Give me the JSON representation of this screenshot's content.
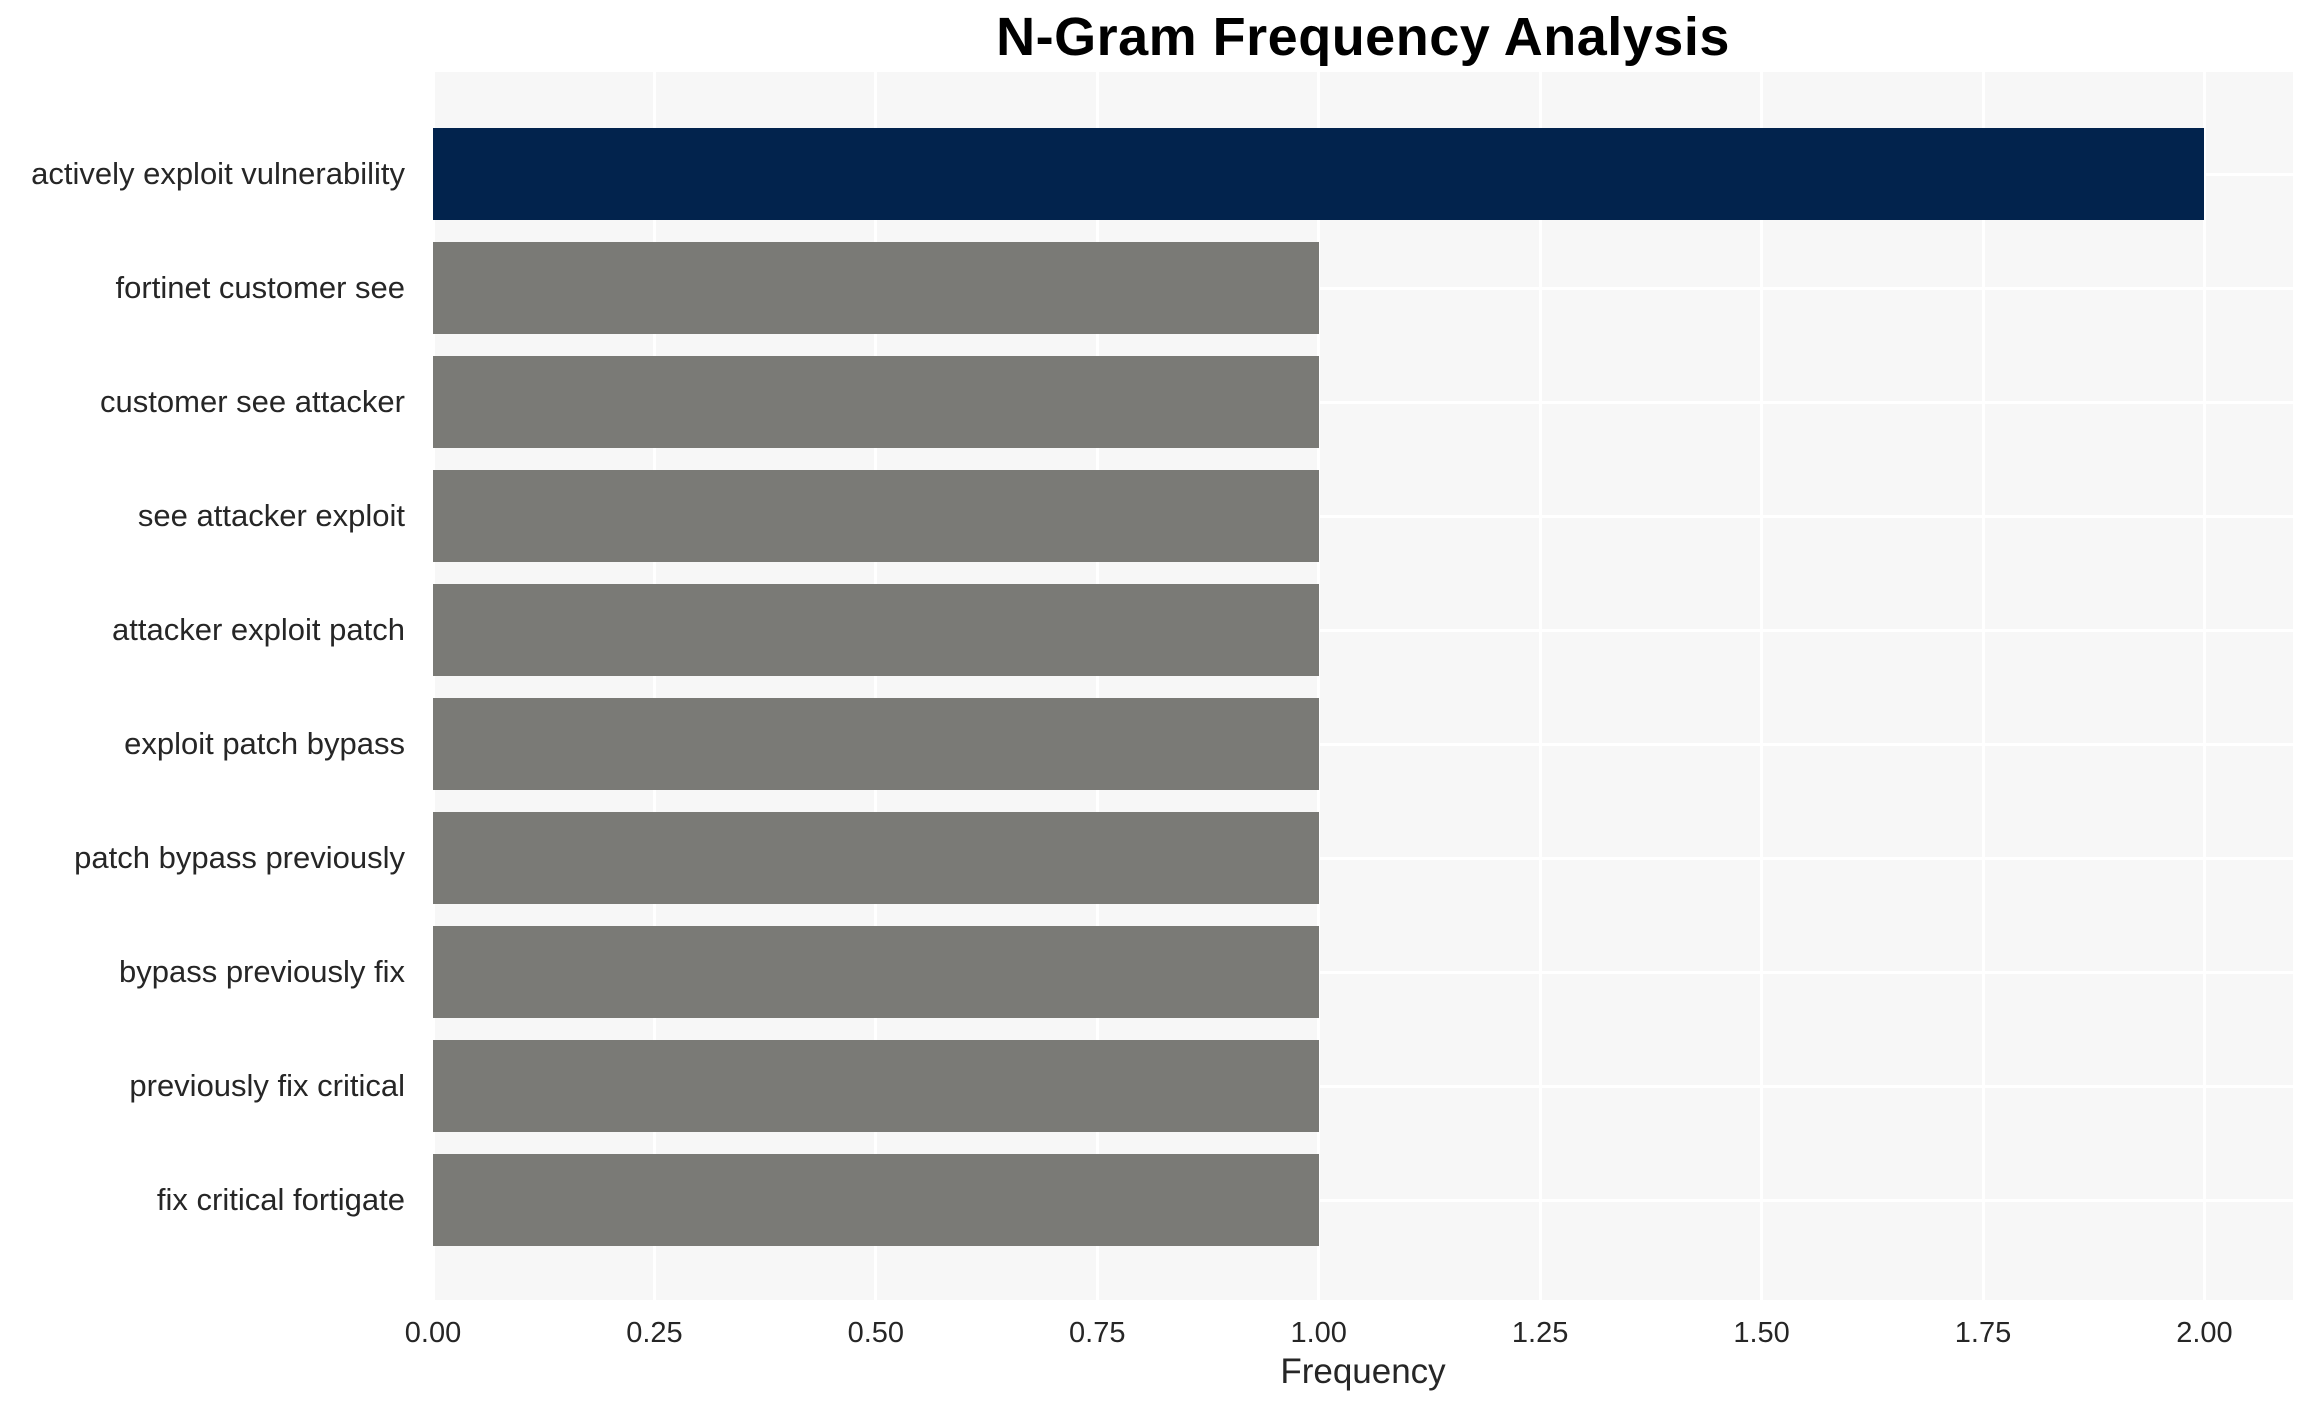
{
  "chart_data": {
    "type": "bar",
    "orientation": "horizontal",
    "title": "N-Gram Frequency Analysis",
    "xlabel": "Frequency",
    "ylabel": "",
    "categories": [
      "actively exploit vulnerability",
      "fortinet customer see",
      "customer see attacker",
      "see attacker exploit",
      "attacker exploit patch",
      "exploit patch bypass",
      "patch bypass previously",
      "bypass previously fix",
      "previously fix critical",
      "fix critical fortigate"
    ],
    "values": [
      2,
      1,
      1,
      1,
      1,
      1,
      1,
      1,
      1,
      1
    ],
    "xlim": [
      0,
      2.1
    ],
    "xticks": [
      0,
      0.25,
      0.5,
      0.75,
      1,
      1.25,
      1.5,
      1.75,
      2
    ],
    "xtick_labels": [
      "0.00",
      "0.25",
      "0.50",
      "0.75",
      "1.00",
      "1.25",
      "1.50",
      "1.75",
      "2.00"
    ],
    "grid": true,
    "legend": false,
    "colors": {
      "bar_colors": [
        "#02234d",
        "#7a7a76",
        "#7a7a76",
        "#7a7a76",
        "#7a7a76",
        "#7a7a76",
        "#7a7a76",
        "#7a7a76",
        "#7a7a76",
        "#7a7a76"
      ],
      "highlight_bar": "#02234d",
      "default_bar": "#7a7a76",
      "plot_background": "#f7f7f7",
      "gridline": "#ffffff",
      "page_background": "#ffffff",
      "text": "#262626",
      "title_text": "#000000"
    }
  }
}
